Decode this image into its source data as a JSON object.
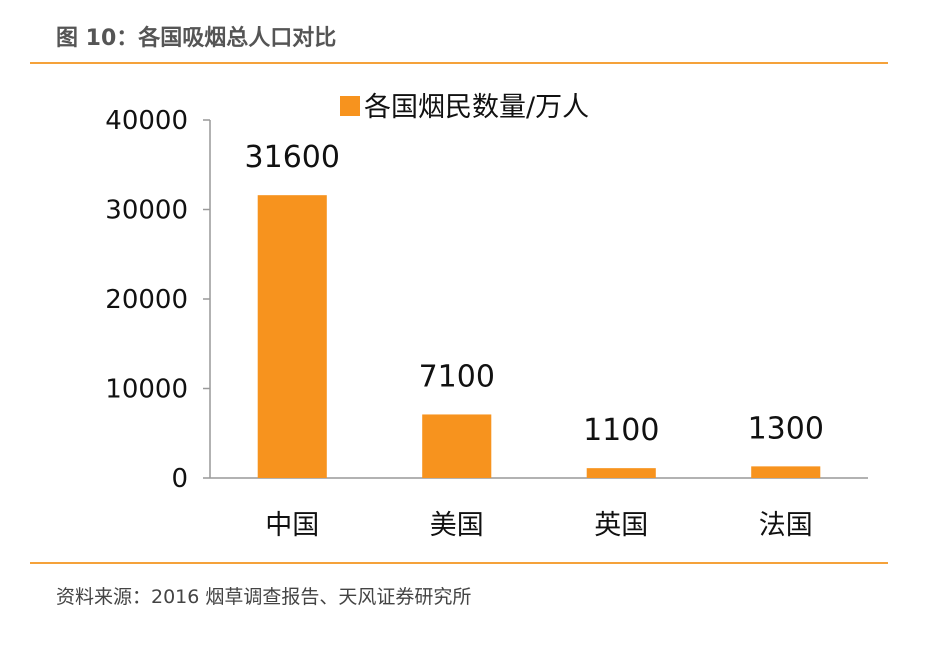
{
  "figure": {
    "title": "图 10：各国吸烟总人口对比",
    "source": "资料来源：2016 烟草调查报告、天风证券研究所"
  },
  "chart_data": {
    "type": "bar",
    "categories": [
      "中国",
      "美国",
      "英国",
      "法国"
    ],
    "series": [
      {
        "name": "各国烟民数量/万人",
        "values": [
          31600,
          7100,
          1100,
          1300
        ],
        "color": "#f7931e"
      }
    ],
    "ylim": [
      0,
      40000
    ],
    "yticks": [
      "0",
      "10000",
      "20000",
      "30000",
      "40000"
    ],
    "xlabel": "",
    "ylabel": "",
    "grid": false,
    "legend": "top"
  }
}
